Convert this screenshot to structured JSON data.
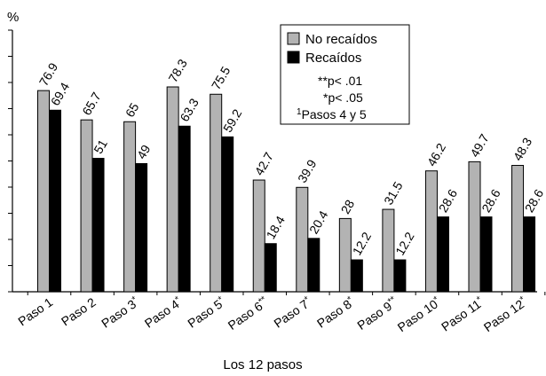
{
  "chart_data": {
    "type": "bar",
    "ylabel": "%",
    "xlabel": "Los 12 pasos",
    "ylim": [
      0,
      100
    ],
    "categories": [
      "Paso 1",
      "Paso 2",
      "Paso 3",
      "Paso 4",
      "Paso 5",
      "Paso 6",
      "Paso 7",
      "Paso 8",
      "Paso 9",
      "Paso 10",
      "Paso 11",
      "Paso 12"
    ],
    "category_marks": [
      "",
      "",
      "*",
      "*",
      "*",
      "**",
      "*",
      "*",
      "**",
      "*",
      "*",
      "*"
    ],
    "series": [
      {
        "name": "No recaídos",
        "color": "#b3b3b3",
        "values": [
          76.9,
          65.7,
          65,
          78.3,
          75.5,
          42.7,
          39.9,
          28,
          31.5,
          46.2,
          49.7,
          48.3
        ]
      },
      {
        "name": "Recaídos",
        "color": "#000000",
        "values": [
          69.4,
          51,
          49,
          63.3,
          59.2,
          18.4,
          20.4,
          12.2,
          12.2,
          28.6,
          28.6,
          28.6
        ]
      }
    ],
    "value_labels": [
      [
        "76.9",
        "65.7",
        "65",
        "78.3",
        "75.5",
        "42.7",
        "39.9",
        "28",
        "31.5",
        "46.2",
        "49.7",
        "48.3"
      ],
      [
        "69.4",
        "51",
        "49",
        "63.3",
        "59.2",
        "18.4",
        "20.4",
        "12.2",
        "12.2",
        "28.6",
        "28.6",
        "28.6"
      ]
    ],
    "legend_position": "top-right",
    "legend_notes": [
      {
        "text": "**p< .01",
        "sup": ""
      },
      {
        "text": "*p< .05",
        "sup": ""
      },
      {
        "text": "Pasos 4 y 5",
        "sup": "1"
      }
    ],
    "grid": false
  }
}
